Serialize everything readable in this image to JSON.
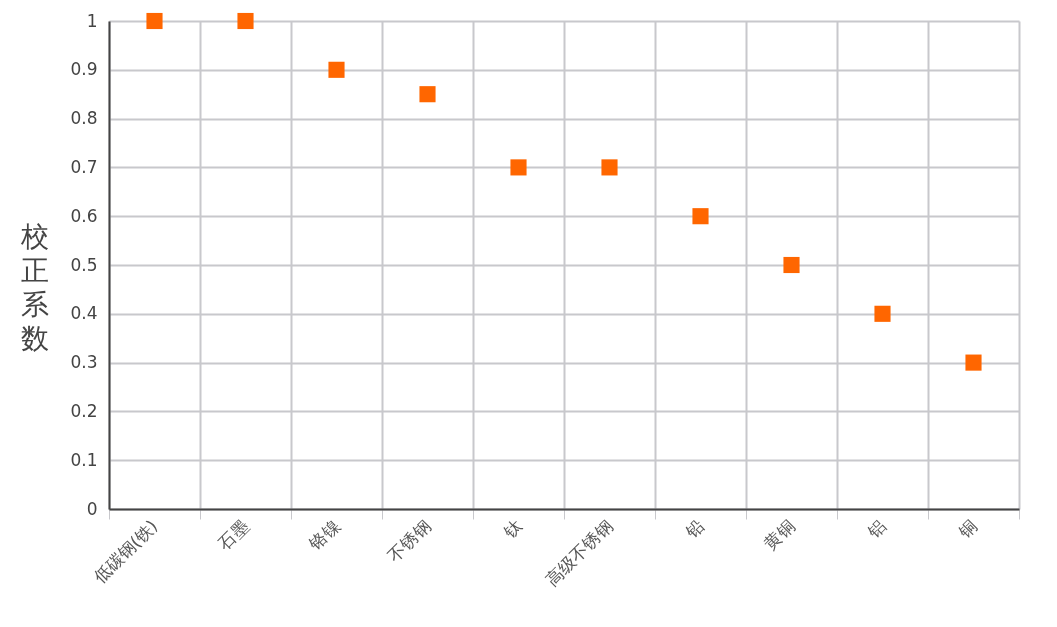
{
  "chart_data": {
    "type": "scatter",
    "ylabel": "校正系数",
    "categories": [
      "低碳钢(铁)",
      "石墨",
      "铬镍",
      "不锈钢",
      "钛",
      "高级不锈钢",
      "铅",
      "黄铜",
      "铝",
      "铜"
    ],
    "series": [
      {
        "color": "#ff6600",
        "values": [
          1,
          1,
          0.9,
          0.85,
          0.7,
          0.7,
          0.6,
          0.5,
          0.4,
          0.3
        ]
      }
    ],
    "ylim": [
      0,
      1
    ],
    "yticks": [
      0,
      0.1,
      0.2,
      0.3,
      0.4,
      0.5,
      0.6,
      0.7,
      0.8,
      0.9,
      1
    ],
    "grid": true,
    "marker": "square"
  }
}
